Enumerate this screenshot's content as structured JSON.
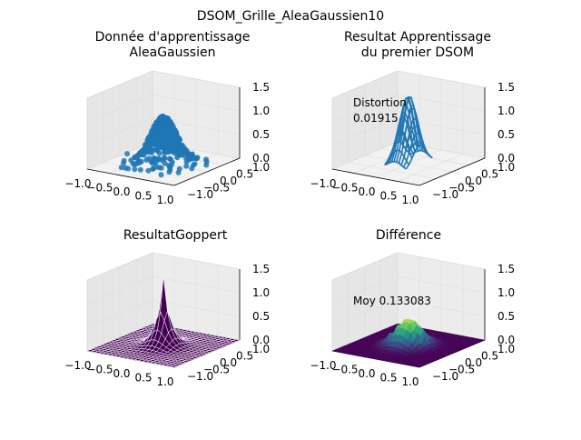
{
  "figure": {
    "title": "DSOM_Grille_AleaGaussien10"
  },
  "colors": {
    "points": "#1f77b4",
    "surface_dark": "#440154",
    "surface_mid": "#21918c",
    "surface_bright": "#fde725",
    "pane": "#f2f2f2",
    "grid": "#dcdcdc"
  },
  "chart_data": [
    {
      "id": "training-data",
      "type": "scatter3d",
      "title_lines": [
        "Donnée d'apprentissage",
        "AleaGaussien"
      ],
      "x_ticks": [
        "−1.0",
        "−0.5",
        "0.0",
        "0.5",
        "1.0"
      ],
      "y_ticks": [
        "−1.0",
        "−0.5",
        "0.0",
        "0.5",
        "1.0"
      ],
      "z_ticks": [
        "0.0",
        "0.5",
        "1.0",
        "1.5"
      ],
      "xlim": [
        -1,
        1
      ],
      "ylim": [
        -1,
        1
      ],
      "zlim": [
        0,
        1.5
      ],
      "function": "z = exp(-(x^2+y^2)/(2*0.25^2))",
      "annotation": null
    },
    {
      "id": "first-dsom",
      "type": "wireframe3d",
      "title_lines": [
        "Resultat Apprentissage",
        "du premier DSOM"
      ],
      "x_ticks": [
        "−1.0",
        "−0.5",
        "0.0",
        "0.5",
        "1.0"
      ],
      "y_ticks": [
        "−1.0",
        "−0.5",
        "0.0",
        "0.5",
        "1.0"
      ],
      "z_ticks": [
        "0.0",
        "0.5",
        "1.0",
        "1.5"
      ],
      "xlim": [
        -1,
        1
      ],
      "ylim": [
        -1,
        1
      ],
      "zlim": [
        0,
        1.5
      ],
      "grid_nodes": 10,
      "annotation": {
        "lines": [
          "Distortion",
          "0.01915"
        ]
      }
    },
    {
      "id": "goppert-result",
      "type": "surface3d",
      "title_lines": [
        "ResultatGoppert"
      ],
      "x_ticks": [
        "−1.0",
        "−0.5",
        "0.0",
        "0.5",
        "1.0"
      ],
      "y_ticks": [
        "−1.0",
        "−0.5",
        "0.0",
        "0.5",
        "1.0"
      ],
      "z_ticks": [
        "0.0",
        "0.5",
        "1.0",
        "1.5"
      ],
      "xlim": [
        -1,
        1
      ],
      "ylim": [
        -1,
        1
      ],
      "zlim": [
        0,
        1.5
      ],
      "annotation": null
    },
    {
      "id": "difference",
      "type": "surface3d",
      "title_lines": [
        "Différence"
      ],
      "x_ticks": [
        "−1.0",
        "−0.5",
        "0.0",
        "0.5",
        "1.0"
      ],
      "y_ticks": [
        "−1.0",
        "−0.5",
        "0.0",
        "0.5",
        "1.0"
      ],
      "z_ticks": [
        "0.0",
        "0.5",
        "1.0",
        "1.5"
      ],
      "xlim": [
        -1,
        1
      ],
      "ylim": [
        -1,
        1
      ],
      "zlim": [
        0,
        1.5
      ],
      "annotation": {
        "lines": [
          "Moy 0.133083"
        ]
      }
    }
  ]
}
